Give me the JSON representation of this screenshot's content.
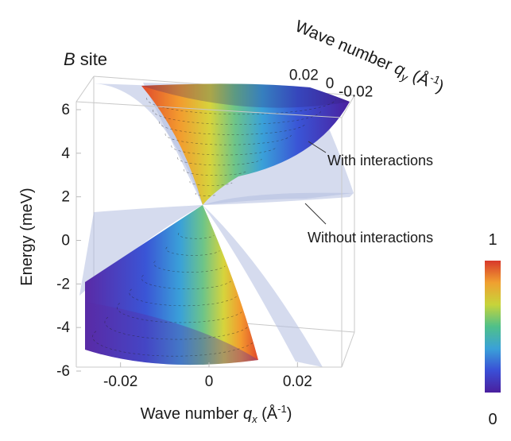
{
  "chart_data": {
    "type": "surface3d",
    "panel_label_letter": "B",
    "panel_label_rest": " site",
    "xaxis": {
      "label_main": "Wave number ",
      "label_var": "q",
      "label_sub": "x",
      "label_unit": " (Å",
      "label_exp": "-1",
      "label_close": ")",
      "ticks": [
        "-0.02",
        "0",
        "0.02"
      ],
      "range": [
        -0.03,
        0.03
      ]
    },
    "yaxis": {
      "label_main": "Wave number ",
      "label_var": "q",
      "label_sub": "y",
      "label_unit": " (Å",
      "label_exp": "-1",
      "label_close": ")",
      "ticks": [
        "0.02",
        "0",
        "-0.02"
      ],
      "range": [
        -0.03,
        0.03
      ]
    },
    "zaxis": {
      "label": "Energy  (meV)",
      "ticks": [
        "6",
        "4",
        "2",
        "0",
        "-2",
        "-4",
        "-6"
      ],
      "range": [
        -6,
        6
      ]
    },
    "series": [
      {
        "name": "With interactions",
        "style": "colored cone (rainbow)",
        "dirac_point_meV": 1.7
      },
      {
        "name": "Without interactions",
        "style": "translucent light blue planes",
        "dirac_point_meV": 1.7
      }
    ],
    "colorbar": {
      "max_label": "1",
      "min_label": "0",
      "range": [
        0,
        1
      ],
      "stops": [
        "#4a1f9e",
        "#3a4fd6",
        "#3aa1d8",
        "#4fc08a",
        "#c7d43a",
        "#f0a030",
        "#d8382c"
      ]
    },
    "colors": {
      "plain_surface": "#b3bde0",
      "box": "#bdbdbd",
      "annotation_line": "#333333"
    }
  }
}
